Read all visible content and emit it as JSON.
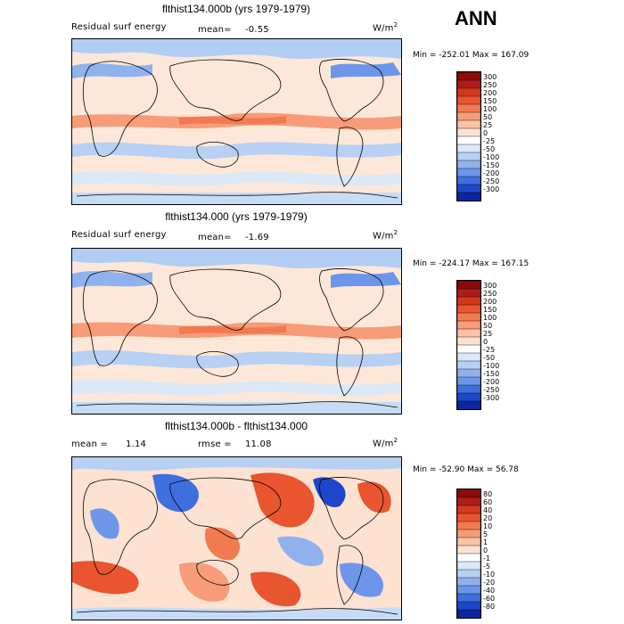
{
  "season": "ANN",
  "panels": [
    {
      "title": "flthist134.000b (yrs 1979-1979)",
      "left_label": "Residual surf energy",
      "mean_label": "mean=",
      "mean_value": "-0.55",
      "units": "W/m",
      "units_sup": "2",
      "minmax": "Min = -252.01 Max = 167.09",
      "colorbar_labels": [
        "300",
        "250",
        "200",
        "150",
        "100",
        "50",
        "25",
        "0",
        "-25",
        "-50",
        "-100",
        "-150",
        "-200",
        "-250",
        "-300"
      ],
      "colorbar_colors": [
        "#8b0a0a",
        "#b01c1c",
        "#d2381c",
        "#e8552e",
        "#f27a50",
        "#f79b78",
        "#fbc2a6",
        "#fde2d2",
        "#ffffff",
        "#dbe8f8",
        "#b7d0f4",
        "#8fb2ee",
        "#6d96ea",
        "#3f6fdd",
        "#1d46c8",
        "#0e25a0"
      ]
    },
    {
      "title": "flthist134.000 (yrs 1979-1979)",
      "left_label": "Residual surf energy",
      "mean_label": "mean=",
      "mean_value": "-1.69",
      "units": "W/m",
      "units_sup": "2",
      "minmax": "Min = -224.17 Max = 167.15",
      "colorbar_labels": [
        "300",
        "250",
        "200",
        "150",
        "100",
        "50",
        "25",
        "0",
        "-25",
        "-50",
        "-100",
        "-150",
        "-200",
        "-250",
        "-300"
      ],
      "colorbar_colors": [
        "#8b0a0a",
        "#b01c1c",
        "#d2381c",
        "#e8552e",
        "#f27a50",
        "#f79b78",
        "#fbc2a6",
        "#fde2d2",
        "#ffffff",
        "#dbe8f8",
        "#b7d0f4",
        "#8fb2ee",
        "#6d96ea",
        "#3f6fdd",
        "#1d46c8",
        "#0e25a0"
      ]
    },
    {
      "title": "flthist134.000b - flthist134.000",
      "left_label": "mean =",
      "mean_label": "",
      "mean_value": "1.14",
      "rmse_label": "rmse =",
      "rmse_value": "11.08",
      "units": "W/m",
      "units_sup": "2",
      "minmax": "Min = -52.90 Max = 56.78",
      "colorbar_labels": [
        "80",
        "60",
        "40",
        "20",
        "10",
        "5",
        "1",
        "0",
        "-1",
        "-5",
        "-10",
        "-20",
        "-40",
        "-60",
        "-80"
      ],
      "colorbar_colors": [
        "#8b0a0a",
        "#b01c1c",
        "#d2381c",
        "#e8552e",
        "#f27a50",
        "#f79b78",
        "#fbc2a6",
        "#fde2d2",
        "#ffffff",
        "#dbe8f8",
        "#b7d0f4",
        "#8fb2ee",
        "#6d96ea",
        "#3f6fdd",
        "#1d46c8",
        "#0e25a0"
      ]
    }
  ]
}
